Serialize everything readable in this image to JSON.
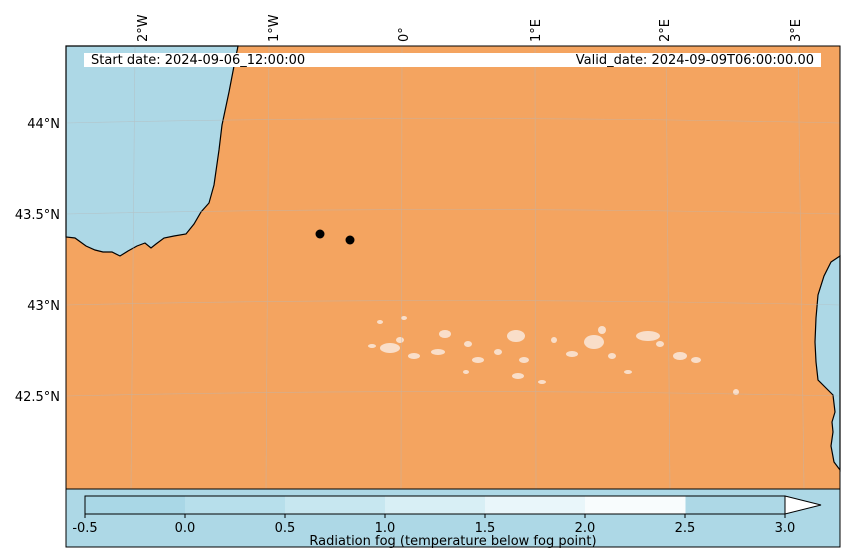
{
  "header": {
    "start_date": "Start date: 2024-09-06_12:00:00",
    "valid_date": "Valid_date: 2024-09-09T06:00:00.00"
  },
  "map": {
    "longitude_labels": [
      "2°W",
      "1°W",
      "0°",
      "1°E",
      "2°E",
      "3°E"
    ],
    "latitude_labels": [
      "44°N",
      "43.5°N",
      "43°N",
      "42.5°N"
    ],
    "markers_count": 2
  },
  "colorbar": {
    "label": "Radiation fog (temperature below fog point)",
    "ticks": [
      "-0.5",
      "0.0",
      "0.5",
      "1.0",
      "1.5",
      "2.0",
      "2.5",
      "3.0"
    ],
    "colors": [
      "#a9d7e6",
      "#b7dfeb",
      "#c7e7f0",
      "#d8eff5",
      "#e9f6fa",
      "#f8fcfd"
    ],
    "extend": "max"
  },
  "colors": {
    "land": "#f4a460",
    "sea": "#add8e6",
    "fog_patch": "#fbe9dc",
    "marker": "#000000"
  }
}
